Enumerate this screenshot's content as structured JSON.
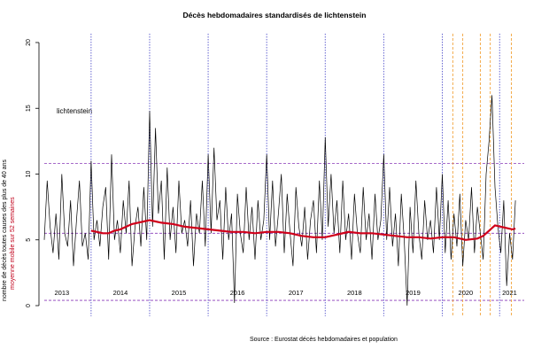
{
  "chart_data": {
    "type": "line",
    "title": "Décès hebdomadaires standardisés de lichtenstein",
    "ylabel": "nombre de décès toutes causes des plus de 40 ans",
    "ylabel_secondary": "moyenne mobile sur 52 semaines",
    "annotation": "lichtenstein",
    "source": "Source : Eurostat décès hebdomadaires et population",
    "ylim": [
      0,
      20
    ],
    "yticks": [
      0,
      5,
      10,
      15,
      20
    ],
    "xlim": [
      2013.0,
      2021.2
    ],
    "year_labels": [
      {
        "label": "2013",
        "x": 2013.3
      },
      {
        "label": "2014",
        "x": 2014.3
      },
      {
        "label": "2015",
        "x": 2015.3
      },
      {
        "label": "2016",
        "x": 2016.3
      },
      {
        "label": "2017",
        "x": 2017.3
      },
      {
        "label": "2018",
        "x": 2018.3
      },
      {
        "label": "2019",
        "x": 2019.3
      },
      {
        "label": "2020",
        "x": 2020.2
      },
      {
        "label": "2021",
        "x": 2020.95
      }
    ],
    "reference_lines": {
      "mean": 5.5,
      "upper": 10.8,
      "lower": 0.4
    },
    "season_lines_blue": [
      2013.8,
      2014.8,
      2015.8,
      2016.8,
      2017.8,
      2018.8,
      2019.8,
      2020.78
    ],
    "covid_lines_orange": [
      2019.98,
      2020.15,
      2020.45,
      2020.62,
      2020.98
    ],
    "series": [
      {
        "name": "weekly",
        "color": "#000000",
        "points": [
          [
            2013.0,
            5.0
          ],
          [
            2013.05,
            9.5
          ],
          [
            2013.1,
            6.0
          ],
          [
            2013.15,
            4.0
          ],
          [
            2013.2,
            7.0
          ],
          [
            2013.25,
            3.5
          ],
          [
            2013.3,
            10.0
          ],
          [
            2013.35,
            5.5
          ],
          [
            2013.4,
            4.5
          ],
          [
            2013.45,
            8.0
          ],
          [
            2013.5,
            3.0
          ],
          [
            2013.55,
            6.5
          ],
          [
            2013.6,
            9.5
          ],
          [
            2013.65,
            4.5
          ],
          [
            2013.7,
            5.5
          ],
          [
            2013.75,
            3.5
          ],
          [
            2013.8,
            11.0
          ],
          [
            2013.85,
            5.0
          ],
          [
            2013.9,
            6.5
          ],
          [
            2013.95,
            4.5
          ],
          [
            2014.0,
            7.5
          ],
          [
            2014.05,
            9.0
          ],
          [
            2014.1,
            3.5
          ],
          [
            2014.15,
            11.5
          ],
          [
            2014.2,
            5.0
          ],
          [
            2014.25,
            6.5
          ],
          [
            2014.3,
            4.0
          ],
          [
            2014.35,
            8.0
          ],
          [
            2014.4,
            5.5
          ],
          [
            2014.45,
            9.5
          ],
          [
            2014.5,
            3.0
          ],
          [
            2014.55,
            6.0
          ],
          [
            2014.6,
            7.5
          ],
          [
            2014.65,
            4.5
          ],
          [
            2014.7,
            9.0
          ],
          [
            2014.75,
            5.0
          ],
          [
            2014.8,
            14.8
          ],
          [
            2014.85,
            6.0
          ],
          [
            2014.9,
            13.5
          ],
          [
            2014.95,
            7.0
          ],
          [
            2015.0,
            9.5
          ],
          [
            2015.05,
            3.5
          ],
          [
            2015.1,
            10.5
          ],
          [
            2015.15,
            5.0
          ],
          [
            2015.2,
            7.5
          ],
          [
            2015.25,
            4.0
          ],
          [
            2015.3,
            9.5
          ],
          [
            2015.35,
            5.5
          ],
          [
            2015.4,
            6.5
          ],
          [
            2015.45,
            4.5
          ],
          [
            2015.5,
            8.0
          ],
          [
            2015.55,
            3.0
          ],
          [
            2015.6,
            7.0
          ],
          [
            2015.65,
            5.5
          ],
          [
            2015.7,
            9.5
          ],
          [
            2015.75,
            4.5
          ],
          [
            2015.8,
            11.5
          ],
          [
            2015.85,
            5.5
          ],
          [
            2015.9,
            12.0
          ],
          [
            2015.95,
            6.5
          ],
          [
            2016.0,
            8.0
          ],
          [
            2016.05,
            3.5
          ],
          [
            2016.1,
            9.0
          ],
          [
            2016.15,
            5.0
          ],
          [
            2016.2,
            7.0
          ],
          [
            2016.25,
            0.2
          ],
          [
            2016.3,
            8.5
          ],
          [
            2016.35,
            5.5
          ],
          [
            2016.4,
            4.0
          ],
          [
            2016.45,
            9.0
          ],
          [
            2016.5,
            5.0
          ],
          [
            2016.55,
            7.5
          ],
          [
            2016.6,
            3.5
          ],
          [
            2016.65,
            8.0
          ],
          [
            2016.7,
            5.0
          ],
          [
            2016.75,
            6.5
          ],
          [
            2016.8,
            11.5
          ],
          [
            2016.85,
            5.0
          ],
          [
            2016.9,
            9.5
          ],
          [
            2016.95,
            4.5
          ],
          [
            2017.0,
            7.0
          ],
          [
            2017.05,
            10.0
          ],
          [
            2017.1,
            4.0
          ],
          [
            2017.15,
            8.5
          ],
          [
            2017.2,
            5.5
          ],
          [
            2017.25,
            3.0
          ],
          [
            2017.3,
            9.0
          ],
          [
            2017.35,
            6.0
          ],
          [
            2017.4,
            4.5
          ],
          [
            2017.45,
            7.5
          ],
          [
            2017.5,
            3.5
          ],
          [
            2017.55,
            6.5
          ],
          [
            2017.6,
            8.0
          ],
          [
            2017.65,
            4.0
          ],
          [
            2017.7,
            9.5
          ],
          [
            2017.75,
            5.0
          ],
          [
            2017.8,
            12.8
          ],
          [
            2017.85,
            6.0
          ],
          [
            2017.9,
            10.0
          ],
          [
            2017.95,
            5.5
          ],
          [
            2018.0,
            8.0
          ],
          [
            2018.05,
            4.0
          ],
          [
            2018.1,
            9.5
          ],
          [
            2018.15,
            5.0
          ],
          [
            2018.2,
            7.0
          ],
          [
            2018.25,
            3.5
          ],
          [
            2018.3,
            8.5
          ],
          [
            2018.35,
            5.5
          ],
          [
            2018.4,
            4.0
          ],
          [
            2018.45,
            9.0
          ],
          [
            2018.5,
            5.0
          ],
          [
            2018.55,
            7.0
          ],
          [
            2018.6,
            3.5
          ],
          [
            2018.65,
            8.5
          ],
          [
            2018.7,
            5.0
          ],
          [
            2018.75,
            6.5
          ],
          [
            2018.8,
            11.5
          ],
          [
            2018.85,
            5.0
          ],
          [
            2018.9,
            9.0
          ],
          [
            2018.95,
            4.5
          ],
          [
            2019.0,
            7.0
          ],
          [
            2019.05,
            3.0
          ],
          [
            2019.1,
            8.5
          ],
          [
            2019.15,
            5.0
          ],
          [
            2019.2,
            0.0
          ],
          [
            2019.25,
            7.5
          ],
          [
            2019.3,
            4.0
          ],
          [
            2019.35,
            9.5
          ],
          [
            2019.4,
            5.5
          ],
          [
            2019.45,
            3.5
          ],
          [
            2019.5,
            8.0
          ],
          [
            2019.55,
            5.0
          ],
          [
            2019.6,
            6.5
          ],
          [
            2019.65,
            4.0
          ],
          [
            2019.7,
            9.0
          ],
          [
            2019.75,
            5.0
          ],
          [
            2019.8,
            10.0
          ],
          [
            2019.85,
            4.0
          ],
          [
            2019.9,
            8.0
          ],
          [
            2019.95,
            3.5
          ],
          [
            2020.0,
            7.0
          ],
          [
            2020.05,
            4.5
          ],
          [
            2020.1,
            8.5
          ],
          [
            2020.15,
            3.0
          ],
          [
            2020.2,
            6.5
          ],
          [
            2020.25,
            5.0
          ],
          [
            2020.3,
            9.0
          ],
          [
            2020.35,
            4.0
          ],
          [
            2020.4,
            7.5
          ],
          [
            2020.45,
            5.5
          ],
          [
            2020.5,
            3.5
          ],
          [
            2020.55,
            10.0
          ],
          [
            2020.6,
            12.5
          ],
          [
            2020.65,
            16.0
          ],
          [
            2020.7,
            9.0
          ],
          [
            2020.75,
            6.0
          ],
          [
            2020.8,
            4.0
          ],
          [
            2020.85,
            8.0
          ],
          [
            2020.9,
            1.5
          ],
          [
            2020.95,
            5.5
          ],
          [
            2021.0,
            3.5
          ],
          [
            2021.05,
            8.0
          ]
        ]
      },
      {
        "name": "moyenne mobile sur 52 semaines",
        "color": "#d0001a",
        "points": [
          [
            2013.8,
            5.7
          ],
          [
            2013.9,
            5.6
          ],
          [
            2014.0,
            5.5
          ],
          [
            2014.1,
            5.5
          ],
          [
            2014.2,
            5.7
          ],
          [
            2014.3,
            5.8
          ],
          [
            2014.4,
            6.0
          ],
          [
            2014.5,
            6.2
          ],
          [
            2014.6,
            6.3
          ],
          [
            2014.7,
            6.4
          ],
          [
            2014.8,
            6.5
          ],
          [
            2014.9,
            6.4
          ],
          [
            2015.0,
            6.3
          ],
          [
            2015.2,
            6.2
          ],
          [
            2015.4,
            6.0
          ],
          [
            2015.6,
            5.9
          ],
          [
            2015.8,
            5.8
          ],
          [
            2016.0,
            5.7
          ],
          [
            2016.2,
            5.6
          ],
          [
            2016.4,
            5.6
          ],
          [
            2016.6,
            5.5
          ],
          [
            2016.8,
            5.6
          ],
          [
            2017.0,
            5.6
          ],
          [
            2017.2,
            5.5
          ],
          [
            2017.4,
            5.3
          ],
          [
            2017.6,
            5.2
          ],
          [
            2017.8,
            5.2
          ],
          [
            2018.0,
            5.4
          ],
          [
            2018.2,
            5.6
          ],
          [
            2018.4,
            5.5
          ],
          [
            2018.6,
            5.5
          ],
          [
            2018.8,
            5.4
          ],
          [
            2019.0,
            5.3
          ],
          [
            2019.2,
            5.2
          ],
          [
            2019.4,
            5.2
          ],
          [
            2019.6,
            5.1
          ],
          [
            2019.8,
            5.2
          ],
          [
            2020.0,
            5.2
          ],
          [
            2020.2,
            5.0
          ],
          [
            2020.4,
            5.1
          ],
          [
            2020.5,
            5.3
          ],
          [
            2020.6,
            5.7
          ],
          [
            2020.7,
            6.1
          ],
          [
            2020.8,
            6.0
          ],
          [
            2020.9,
            5.9
          ],
          [
            2021.0,
            5.8
          ],
          [
            2021.05,
            5.85
          ]
        ]
      }
    ],
    "colors": {
      "weekly": "#000000",
      "moving_average": "#d0001a",
      "reference": "#8a3ab9",
      "season": "#5555cc",
      "covid": "#f2a33a",
      "axis": "#000000"
    }
  }
}
